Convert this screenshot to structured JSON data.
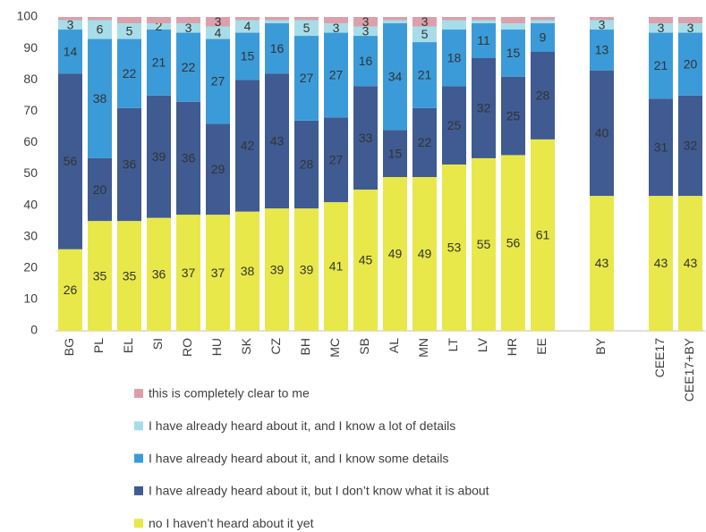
{
  "chart_data": {
    "type": "stacked_bar",
    "categories": [
      "BG",
      "PL",
      "EL",
      "SI",
      "RO",
      "HU",
      "SK",
      "CZ",
      "BH",
      "MC",
      "SB",
      "AL",
      "MN",
      "LT",
      "LV",
      "HR",
      "EE",
      null,
      "BY",
      null,
      "CEE17",
      "CEE17+BY"
    ],
    "series": [
      {
        "name": "no I haven’t heard about it yet",
        "color": "#e8e84a",
        "values": [
          26,
          35,
          35,
          36,
          37,
          37,
          38,
          39,
          39,
          41,
          45,
          49,
          49,
          53,
          55,
          56,
          61,
          null,
          43,
          null,
          43,
          43
        ]
      },
      {
        "name": "I have already heard about it, but I don’t know what it is about",
        "color": "#3f5b91",
        "values": [
          56,
          20,
          36,
          39,
          36,
          29,
          42,
          43,
          28,
          27,
          33,
          15,
          22,
          25,
          32,
          25,
          28,
          null,
          40,
          null,
          31,
          32
        ]
      },
      {
        "name": "I have already heard about it, and I know some details",
        "color": "#3b9bd8",
        "values": [
          14,
          38,
          22,
          21,
          22,
          27,
          15,
          16,
          27,
          27,
          16,
          34,
          21,
          18,
          11,
          15,
          9,
          null,
          13,
          null,
          21,
          20
        ]
      },
      {
        "name": "I have already heard about it, and I know a lot of details",
        "color": "#a7dde8",
        "values": [
          3,
          6,
          5,
          2,
          3,
          4,
          4,
          1,
          5,
          3,
          3,
          1,
          5,
          3,
          1,
          2,
          1,
          null,
          3,
          null,
          3,
          3
        ],
        "value_labels": [
          "3",
          "6",
          "5",
          "2",
          "3",
          "4",
          "4",
          null,
          "5",
          "3",
          "3",
          null,
          "5",
          null,
          null,
          null,
          null,
          null,
          "3",
          null,
          "3",
          "3"
        ]
      },
      {
        "name": "this is completely clear to me",
        "color": "#dba0aa",
        "values": [
          1,
          1,
          2,
          2,
          2,
          3,
          1,
          1,
          1,
          2,
          3,
          1,
          3,
          1,
          1,
          2,
          1,
          null,
          1,
          null,
          2,
          2
        ],
        "value_labels": [
          null,
          null,
          null,
          null,
          null,
          "3",
          null,
          null,
          null,
          null,
          "3",
          null,
          "3",
          null,
          null,
          null,
          null,
          null,
          null,
          null,
          null,
          null
        ]
      }
    ],
    "ylim": [
      0,
      100
    ],
    "yticks": [
      0,
      10,
      20,
      30,
      40,
      50,
      60,
      70,
      80,
      90,
      100
    ],
    "grid": false
  }
}
